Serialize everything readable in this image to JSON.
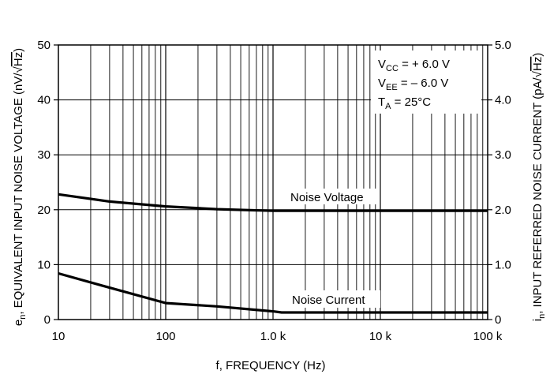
{
  "chart_data": {
    "type": "line",
    "x_scale": "log",
    "xlim": [
      10,
      100000
    ],
    "ylim": [
      0,
      50
    ],
    "y2lim": [
      0,
      5.0
    ],
    "grid": true,
    "xlabel": "f, FREQUENCY (Hz)",
    "ylabel": {
      "main": "e",
      "sub": "n",
      "rest": ", EQUIVALENT INPUT NOISE VOLTAGE (nV/",
      "radical": "√",
      "over": "Hz",
      "close": ")"
    },
    "y2label": {
      "main": "i",
      "sub": "n",
      "rest": ", INPUT REFERRED NOISE CURRENT (pA/",
      "radical": "√",
      "over": "Hz",
      "close": ")"
    },
    "x_ticks": [
      {
        "value": 10,
        "label": "10"
      },
      {
        "value": 100,
        "label": "100"
      },
      {
        "value": 1000,
        "label": "1.0 k"
      },
      {
        "value": 10000,
        "label": "10 k"
      },
      {
        "value": 100000,
        "label": "100 k"
      }
    ],
    "y_ticks": [
      {
        "value": 0,
        "label": "0"
      },
      {
        "value": 10,
        "label": "10"
      },
      {
        "value": 20,
        "label": "20"
      },
      {
        "value": 30,
        "label": "30"
      },
      {
        "value": 40,
        "label": "40"
      },
      {
        "value": 50,
        "label": "50"
      }
    ],
    "y2_ticks": [
      {
        "value": 0,
        "label": "0"
      },
      {
        "value": 1.0,
        "label": "1.0"
      },
      {
        "value": 2.0,
        "label": "2.0"
      },
      {
        "value": 3.0,
        "label": "3.0"
      },
      {
        "value": 4.0,
        "label": "4.0"
      },
      {
        "value": 5.0,
        "label": "5.0"
      }
    ],
    "series": [
      {
        "name": "Noise Voltage",
        "axis": "left",
        "x": [
          10,
          30,
          100,
          300,
          1000,
          3000,
          10000,
          30000,
          100000
        ],
        "y": [
          22.8,
          21.5,
          20.6,
          20.1,
          19.8,
          19.8,
          19.8,
          19.8,
          19.8
        ]
      },
      {
        "name": "Noise Current",
        "axis": "right",
        "x": [
          10,
          30,
          100,
          300,
          1000,
          1200,
          3000,
          10000,
          30000,
          100000
        ],
        "y": [
          0.84,
          0.58,
          0.3,
          0.24,
          0.15,
          0.13,
          0.13,
          0.13,
          0.13,
          0.13
        ]
      }
    ],
    "conditions": [
      {
        "main": "V",
        "sub": "CC",
        "rest": " = + 6.0 V"
      },
      {
        "main": "V",
        "sub": "EE",
        "rest": " = – 6.0 V"
      },
      {
        "main": "T",
        "sub": "A",
        "rest": " = 25°C"
      }
    ],
    "line_color": "#000000"
  }
}
